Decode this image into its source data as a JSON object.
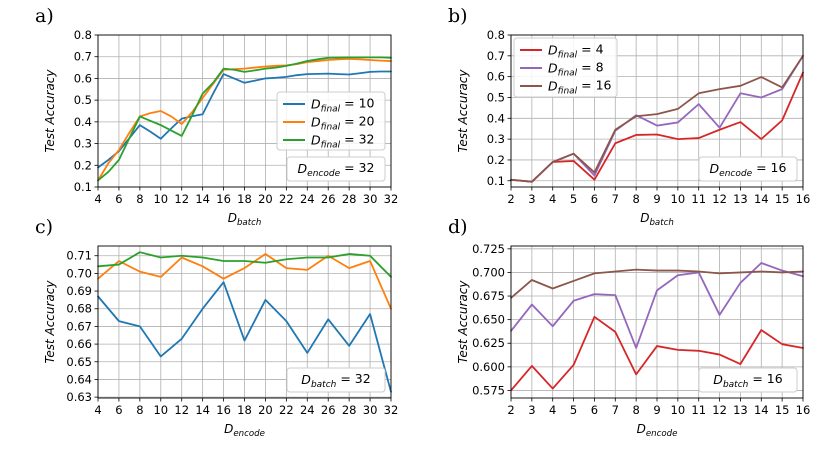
{
  "chart_data": [
    {
      "panel": "a)",
      "type": "line",
      "x": [
        4,
        5,
        6,
        7,
        8,
        9,
        10,
        11,
        12,
        13,
        14,
        15,
        16,
        17,
        18,
        19,
        20,
        21,
        22,
        23,
        24,
        25,
        26,
        27,
        28,
        29,
        30,
        31,
        32
      ],
      "xticks": [
        "4",
        "6",
        "8",
        "10",
        "12",
        "14",
        "16",
        "18",
        "20",
        "22",
        "24",
        "26",
        "28",
        "30",
        "32"
      ],
      "yticks": [
        "0.1",
        "0.2",
        "0.3",
        "0.4",
        "0.5",
        "0.6",
        "0.7",
        "0.8"
      ],
      "xlim": [
        4,
        32
      ],
      "ylim": [
        0.1,
        0.8
      ],
      "xlabel": "D",
      "xlabel_sub": "batch",
      "ylabel": "Test Accuracy",
      "annotation": {
        "name": "D",
        "sub": "encode",
        "text": " = 32"
      },
      "legend_pos": "center-right",
      "series": [
        {
          "name": "D",
          "sub": "final",
          "label": " = 10",
          "color": "#1f77b4",
          "values": [
            0.19,
            0.225,
            0.265,
            0.325,
            0.385,
            0.355,
            0.322,
            0.37,
            0.415,
            0.426,
            0.435,
            0.53,
            0.62,
            0.6,
            0.58,
            0.59,
            0.6,
            0.603,
            0.607,
            0.615,
            0.62,
            0.621,
            0.622,
            0.62,
            0.618,
            0.624,
            0.63,
            0.632,
            0.632
          ]
        },
        {
          "name": "D",
          "sub": "final",
          "label": " = 20",
          "color": "#ff7f0e",
          "values": [
            0.13,
            0.21,
            0.27,
            0.35,
            0.425,
            0.44,
            0.45,
            0.425,
            0.39,
            0.445,
            0.51,
            0.575,
            0.64,
            0.643,
            0.645,
            0.65,
            0.655,
            0.658,
            0.66,
            0.666,
            0.675,
            0.68,
            0.685,
            0.688,
            0.69,
            0.688,
            0.685,
            0.682,
            0.68
          ]
        },
        {
          "name": "D",
          "sub": "final",
          "label": " = 32",
          "color": "#2ca02c",
          "values": [
            0.13,
            0.17,
            0.225,
            0.325,
            0.425,
            0.405,
            0.385,
            0.36,
            0.335,
            0.43,
            0.53,
            0.58,
            0.645,
            0.64,
            0.63,
            0.637,
            0.645,
            0.65,
            0.658,
            0.668,
            0.68,
            0.688,
            0.695,
            0.696,
            0.697,
            0.697,
            0.697,
            0.697,
            0.695
          ]
        }
      ]
    },
    {
      "panel": "b)",
      "type": "line",
      "x": [
        2,
        3,
        4,
        5,
        6,
        7,
        8,
        9,
        10,
        11,
        12,
        13,
        14,
        15,
        16
      ],
      "xticks": [
        "2",
        "3",
        "4",
        "5",
        "6",
        "7",
        "8",
        "9",
        "10",
        "11",
        "12",
        "13",
        "14",
        "15",
        "16"
      ],
      "yticks": [
        "0.1",
        "0.2",
        "0.3",
        "0.4",
        "0.5",
        "0.6",
        "0.7",
        "0.8"
      ],
      "xlim": [
        2,
        16
      ],
      "ylim": [
        0.07,
        0.8
      ],
      "xlabel": "D",
      "xlabel_sub": "batch",
      "ylabel": "Test Accuracy",
      "annotation": {
        "name": "D",
        "sub": "encode",
        "text": " = 16"
      },
      "legend_pos": "upper-left",
      "series": [
        {
          "name": "D",
          "sub": "final",
          "label": " = 4",
          "color": "#d62728",
          "values": [
            0.105,
            0.095,
            0.19,
            0.195,
            0.105,
            0.28,
            0.32,
            0.322,
            0.3,
            0.305,
            0.345,
            0.382,
            0.3,
            0.39,
            0.62
          ]
        },
        {
          "name": "D",
          "sub": "final",
          "label": " = 8",
          "color": "#9467bd",
          "values": [
            0.105,
            0.095,
            0.19,
            0.23,
            0.125,
            0.34,
            0.415,
            0.365,
            0.38,
            0.468,
            0.355,
            0.52,
            0.5,
            0.54,
            0.7
          ]
        },
        {
          "name": "D",
          "sub": "final",
          "label": " = 16",
          "color": "#8c564b",
          "values": [
            0.105,
            0.095,
            0.19,
            0.23,
            0.14,
            0.345,
            0.41,
            0.42,
            0.445,
            0.52,
            0.54,
            0.556,
            0.598,
            0.548,
            0.7
          ]
        }
      ]
    },
    {
      "panel": "c)",
      "type": "line",
      "x": [
        4,
        6,
        8,
        10,
        12,
        14,
        16,
        18,
        20,
        22,
        24,
        26,
        28,
        30,
        32
      ],
      "xticks": [
        "4",
        "6",
        "8",
        "10",
        "12",
        "14",
        "16",
        "18",
        "20",
        "22",
        "24",
        "26",
        "28",
        "30",
        "32"
      ],
      "yticks": [
        "0.63",
        "0.64",
        "0.65",
        "0.66",
        "0.67",
        "0.68",
        "0.69",
        "0.70",
        "0.71"
      ],
      "xlim": [
        4,
        32
      ],
      "ylim": [
        0.6295,
        0.7155
      ],
      "xlabel": "D",
      "xlabel_sub": "encode",
      "ylabel": "Test Accuracy",
      "annotation": {
        "name": "D",
        "sub": "batch",
        "text": " = 32"
      },
      "series": [
        {
          "color": "#1f77b4",
          "values": [
            0.687,
            0.673,
            0.67,
            0.653,
            0.663,
            0.68,
            0.695,
            0.662,
            0.685,
            0.673,
            0.655,
            0.674,
            0.659,
            0.677,
            0.633
          ]
        },
        {
          "color": "#ff7f0e",
          "values": [
            0.697,
            0.707,
            0.701,
            0.698,
            0.709,
            0.704,
            0.697,
            0.703,
            0.711,
            0.703,
            0.702,
            0.71,
            0.703,
            0.707,
            0.68
          ]
        },
        {
          "color": "#2ca02c",
          "values": [
            0.704,
            0.705,
            0.712,
            0.709,
            0.71,
            0.709,
            0.707,
            0.707,
            0.706,
            0.708,
            0.709,
            0.709,
            0.711,
            0.71,
            0.698
          ]
        }
      ]
    },
    {
      "panel": "d)",
      "type": "line",
      "x": [
        2,
        3,
        4,
        5,
        6,
        7,
        8,
        9,
        10,
        11,
        12,
        13,
        14,
        15,
        16
      ],
      "xticks": [
        "2",
        "3",
        "4",
        "5",
        "6",
        "7",
        "8",
        "9",
        "10",
        "11",
        "12",
        "13",
        "14",
        "15",
        "16"
      ],
      "yticks": [
        "0.575",
        "0.600",
        "0.625",
        "0.650",
        "0.675",
        "0.700",
        "0.725"
      ],
      "xlim": [
        2,
        16
      ],
      "ylim": [
        0.567,
        0.728
      ],
      "xlabel": "D",
      "xlabel_sub": "encode",
      "ylabel": "Test Accuracy",
      "annotation": {
        "name": "D",
        "sub": "batch",
        "text": " = 16"
      },
      "series": [
        {
          "color": "#d62728",
          "values": [
            0.575,
            0.601,
            0.577,
            0.602,
            0.653,
            0.637,
            0.592,
            0.622,
            0.618,
            0.617,
            0.613,
            0.603,
            0.639,
            0.624,
            0.62
          ]
        },
        {
          "color": "#9467bd",
          "values": [
            0.638,
            0.666,
            0.643,
            0.67,
            0.677,
            0.676,
            0.62,
            0.681,
            0.697,
            0.7,
            0.655,
            0.689,
            0.71,
            0.702,
            0.696
          ]
        },
        {
          "color": "#8c564b",
          "values": [
            0.673,
            0.692,
            0.683,
            0.691,
            0.699,
            0.701,
            0.703,
            0.702,
            0.702,
            0.701,
            0.699,
            0.7,
            0.701,
            0.7,
            0.701
          ]
        }
      ]
    }
  ]
}
